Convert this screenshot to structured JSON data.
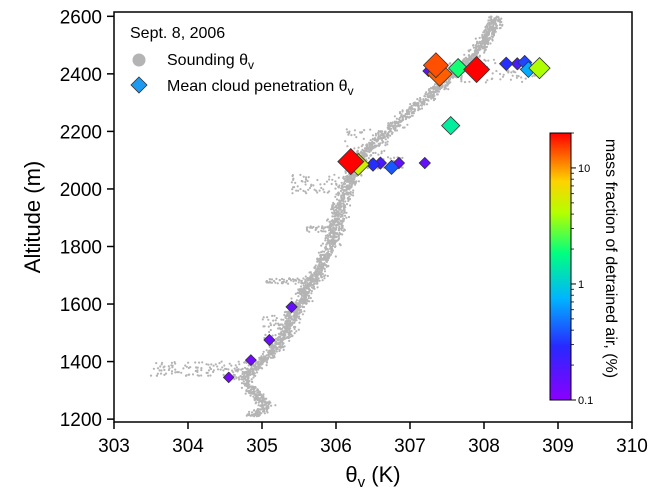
{
  "chart_data": {
    "type": "scatter",
    "title": "",
    "xlabel": "θ",
    "xlabel_sub": "v",
    "xlabel_unit": " (K)",
    "ylabel": "Altitude (m)",
    "xlim": [
      303,
      310
    ],
    "ylim": [
      1190,
      2615
    ],
    "x_ticks": [
      "303",
      "304",
      "305",
      "306",
      "307",
      "308",
      "309",
      "310"
    ],
    "y_ticks": [
      "1200",
      "1400",
      "1600",
      "1800",
      "2000",
      "2200",
      "2400",
      "2600"
    ],
    "grid": false,
    "legend": {
      "position": "top-left",
      "date": "Sept. 8, 2006",
      "entries": [
        {
          "label": "Sounding θ",
          "sub": "v",
          "marker": "circle",
          "color": "#b4b4b4"
        },
        {
          "label": "Mean cloud penetration θ",
          "sub": "v",
          "marker": "diamond",
          "color": "#1e9bf0"
        }
      ]
    },
    "colorbar": {
      "title": "mass fraction of detrained air, (%)",
      "scale": "log",
      "range": [
        0.1,
        20
      ],
      "ticks": [
        "0.1",
        "1",
        "10"
      ]
    },
    "sounding_profile": {
      "color": "#b4b4b4",
      "points": [
        [
          304.9,
          1210
        ],
        [
          305.05,
          1250
        ],
        [
          304.9,
          1290
        ],
        [
          304.75,
          1340
        ],
        [
          304.95,
          1390
        ],
        [
          305.15,
          1440
        ],
        [
          305.3,
          1500
        ],
        [
          305.4,
          1550
        ],
        [
          305.5,
          1600
        ],
        [
          305.6,
          1650
        ],
        [
          305.75,
          1700
        ],
        [
          305.85,
          1760
        ],
        [
          305.95,
          1820
        ],
        [
          306.0,
          1880
        ],
        [
          306.05,
          1940
        ],
        [
          306.15,
          2000
        ],
        [
          306.25,
          2060
        ],
        [
          306.35,
          2120
        ],
        [
          306.55,
          2170
        ],
        [
          306.8,
          2220
        ],
        [
          307.05,
          2280
        ],
        [
          307.3,
          2330
        ],
        [
          307.5,
          2380
        ],
        [
          307.75,
          2430
        ],
        [
          307.95,
          2490
        ],
        [
          308.1,
          2550
        ],
        [
          308.15,
          2600
        ]
      ],
      "spreads": [
        {
          "y": [
            1350,
            1400
          ],
          "x": [
            303.5,
            304.9
          ]
        },
        {
          "y": [
            1480,
            1560
          ],
          "x": [
            305.0,
            305.5
          ]
        },
        {
          "y": [
            1670,
            1690
          ],
          "x": [
            305.05,
            305.75
          ]
        },
        {
          "y": [
            1850,
            1870
          ],
          "x": [
            305.6,
            306.0
          ]
        },
        {
          "y": [
            1980,
            2050
          ],
          "x": [
            305.4,
            306.2
          ]
        },
        {
          "y": [
            2070,
            2110
          ],
          "x": [
            306.2,
            306.9
          ]
        },
        {
          "y": [
            2100,
            2210
          ],
          "x": [
            306.1,
            306.8
          ]
        },
        {
          "y": [
            2370,
            2450
          ],
          "x": [
            307.5,
            308.7
          ]
        }
      ]
    },
    "cloud_penetrations": [
      {
        "x": 304.55,
        "y": 1345,
        "f": 0.12
      },
      {
        "x": 304.85,
        "y": 1405,
        "f": 0.13
      },
      {
        "x": 305.1,
        "y": 1475,
        "f": 0.14
      },
      {
        "x": 305.4,
        "y": 1590,
        "f": 0.15
      },
      {
        "x": 306.2,
        "y": 2095,
        "f": 20
      },
      {
        "x": 306.3,
        "y": 2085,
        "f": 5
      },
      {
        "x": 306.5,
        "y": 2085,
        "f": 0.3
      },
      {
        "x": 306.6,
        "y": 2090,
        "f": 0.2
      },
      {
        "x": 306.75,
        "y": 2075,
        "f": 0.4
      },
      {
        "x": 306.85,
        "y": 2090,
        "f": 0.15
      },
      {
        "x": 307.2,
        "y": 2090,
        "f": 0.15
      },
      {
        "x": 307.55,
        "y": 2220,
        "f": 1.5
      },
      {
        "x": 307.25,
        "y": 2410,
        "f": 0.15
      },
      {
        "x": 307.35,
        "y": 2430,
        "f": 14
      },
      {
        "x": 307.4,
        "y": 2400,
        "f": 13
      },
      {
        "x": 307.65,
        "y": 2420,
        "f": 2
      },
      {
        "x": 307.85,
        "y": 2420,
        "f": 0.25
      },
      {
        "x": 307.9,
        "y": 2415,
        "f": 20
      },
      {
        "x": 308.3,
        "y": 2435,
        "f": 0.3
      },
      {
        "x": 308.45,
        "y": 2435,
        "f": 0.2
      },
      {
        "x": 308.55,
        "y": 2440,
        "f": 0.35
      },
      {
        "x": 308.6,
        "y": 2415,
        "f": 0.7
      },
      {
        "x": 308.75,
        "y": 2420,
        "f": 4
      }
    ]
  }
}
